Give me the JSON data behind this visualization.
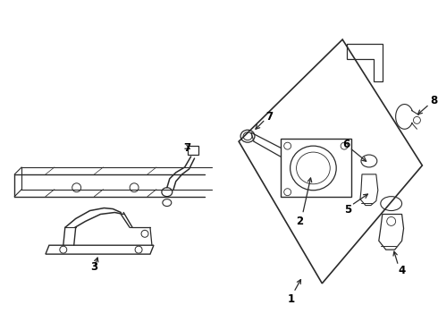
{
  "bg_color": "#ffffff",
  "line_color": "#2a2a2a",
  "fig_width": 4.9,
  "fig_height": 3.6,
  "dpi": 100,
  "label_fontsize": 8.5,
  "label_color": "#000000"
}
